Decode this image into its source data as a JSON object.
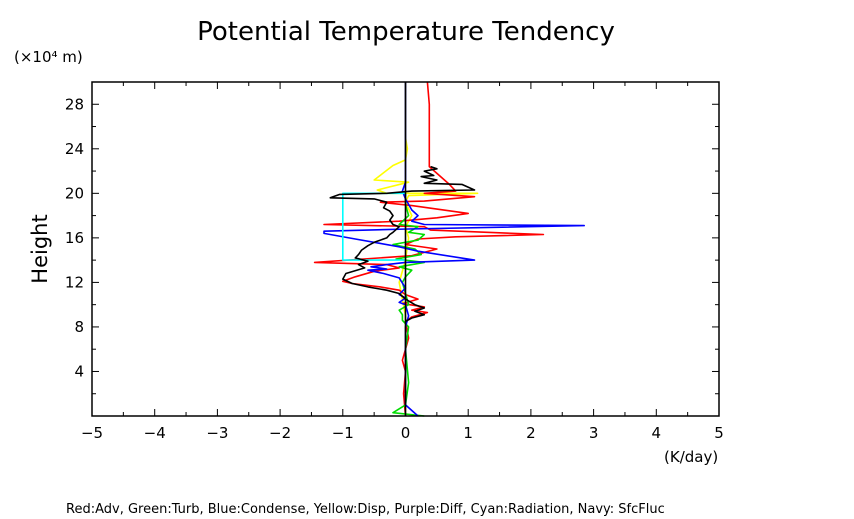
{
  "chart_data": {
    "type": "line",
    "title": "Potential Temperature Tendency",
    "xlabel": "(K/day)",
    "ylabel": "Height",
    "y_unit_label": "(×10⁴ m)",
    "xlim": [
      -5,
      5
    ],
    "ylim": [
      0,
      30
    ],
    "x_ticks": [
      "−5",
      "−4",
      "−3",
      "−2",
      "−1",
      "0",
      "1",
      "2",
      "3",
      "4",
      "5"
    ],
    "y_ticks": [
      "4",
      "8",
      "12",
      "16",
      "20",
      "24",
      "28"
    ],
    "grid": false,
    "legend_caption": "Red:Adv, Green:Turb, Blue:Condense, Yellow:Disp, Purple:Diff, Cyan:Radiation, Navy: SfcFluc",
    "series": [
      {
        "color": "#ffff00",
        "points": [
          [
            0,
            30
          ],
          [
            0,
            25
          ],
          [
            0.03,
            24
          ],
          [
            0,
            23
          ],
          [
            -0.2,
            22.5
          ],
          [
            -0.5,
            21.2
          ],
          [
            0.05,
            21
          ],
          [
            -0.45,
            20.3
          ],
          [
            -0.3,
            20
          ],
          [
            1.15,
            20
          ],
          [
            0.05,
            19.8
          ],
          [
            0,
            19.2
          ],
          [
            0.1,
            18
          ],
          [
            0,
            17
          ],
          [
            0.05,
            16
          ],
          [
            0,
            14
          ],
          [
            -0.1,
            12
          ],
          [
            0,
            9
          ],
          [
            0,
            0
          ]
        ]
      },
      {
        "color": "#ff0000",
        "points": [
          [
            0.35,
            30
          ],
          [
            0.38,
            28
          ],
          [
            0.38,
            26
          ],
          [
            0.38,
            24
          ],
          [
            0.38,
            22.4
          ],
          [
            0.7,
            20.8
          ],
          [
            0.8,
            20.2
          ],
          [
            0.3,
            20
          ],
          [
            1.1,
            19.7
          ],
          [
            0.3,
            19.3
          ],
          [
            -0.4,
            19.2
          ],
          [
            0.1,
            18.9
          ],
          [
            1.0,
            18.2
          ],
          [
            0.5,
            17.8
          ],
          [
            -0.1,
            17.5
          ],
          [
            -1.3,
            17.2
          ],
          [
            0.3,
            17.0
          ],
          [
            0.4,
            16.7
          ],
          [
            2.2,
            16.3
          ],
          [
            0.8,
            16.1
          ],
          [
            0.2,
            15.9
          ],
          [
            0.0,
            15.4
          ],
          [
            0.5,
            15
          ],
          [
            0.1,
            14.4
          ],
          [
            -1.45,
            13.8
          ],
          [
            -0.3,
            13.6
          ],
          [
            -0.1,
            13.3
          ],
          [
            -0.5,
            13.0
          ],
          [
            -0.8,
            12.5
          ],
          [
            -1.0,
            12.1
          ],
          [
            -0.85,
            11.9
          ],
          [
            -0.4,
            11.6
          ],
          [
            -0.1,
            11.3
          ],
          [
            0,
            10.9
          ],
          [
            0.2,
            10.5
          ],
          [
            -0.05,
            10.1
          ],
          [
            0.3,
            9.8
          ],
          [
            0.1,
            9.5
          ],
          [
            0.35,
            9.3
          ],
          [
            0.1,
            8.9
          ],
          [
            0.0,
            8.5
          ],
          [
            0.05,
            7
          ],
          [
            -0.05,
            5
          ],
          [
            0.0,
            4
          ],
          [
            -0.03,
            2
          ],
          [
            0,
            0
          ]
        ]
      },
      {
        "color": "#00dd00",
        "points": [
          [
            0,
            20
          ],
          [
            0,
            19
          ],
          [
            0.05,
            18
          ],
          [
            -0.1,
            17.2
          ],
          [
            0.2,
            17
          ],
          [
            0.05,
            16.5
          ],
          [
            0.3,
            16.3
          ],
          [
            0.2,
            15.8
          ],
          [
            -0.2,
            15.4
          ],
          [
            0.15,
            15
          ],
          [
            0.25,
            14.5
          ],
          [
            -0.15,
            14.1
          ],
          [
            0.3,
            13.8
          ],
          [
            -0.1,
            13.4
          ],
          [
            0.1,
            13.1
          ],
          [
            0,
            12.5
          ],
          [
            -0.05,
            12
          ],
          [
            0,
            11
          ],
          [
            0.05,
            10
          ],
          [
            -0.1,
            9.5
          ],
          [
            -0.05,
            9.1
          ],
          [
            -0.05,
            8.6
          ],
          [
            0.05,
            8
          ],
          [
            0,
            6
          ],
          [
            0.05,
            3
          ],
          [
            0,
            1
          ],
          [
            -0.2,
            0.3
          ],
          [
            0.3,
            0
          ]
        ]
      },
      {
        "color": "#0000ff",
        "points": [
          [
            0,
            30
          ],
          [
            0,
            21
          ],
          [
            -0.05,
            20.2
          ],
          [
            0,
            19.5
          ],
          [
            0.1,
            18.5
          ],
          [
            0.2,
            18
          ],
          [
            0.1,
            17.5
          ],
          [
            0.3,
            17.2
          ],
          [
            2.85,
            17.1
          ],
          [
            0.05,
            16.8
          ],
          [
            -1.3,
            16.6
          ],
          [
            -1.3,
            16.4
          ],
          [
            -0.8,
            15.9
          ],
          [
            -0.4,
            15.5
          ],
          [
            -0.1,
            15.2
          ],
          [
            0.2,
            14.8
          ],
          [
            1.1,
            14.0
          ],
          [
            0,
            13.8
          ],
          [
            -0.3,
            13.6
          ],
          [
            -0.55,
            13.4
          ],
          [
            -0.3,
            13.2
          ],
          [
            -0.6,
            13.1
          ],
          [
            -0.35,
            12.8
          ],
          [
            -0.1,
            12.4
          ],
          [
            0,
            11.5
          ],
          [
            -0.1,
            10.9
          ],
          [
            0,
            10.6
          ],
          [
            -0.1,
            10.2
          ],
          [
            0,
            10
          ],
          [
            0.05,
            9
          ],
          [
            0,
            8
          ],
          [
            0,
            4
          ],
          [
            0,
            1
          ],
          [
            0.2,
            0
          ]
        ]
      },
      {
        "color": "#00ffff",
        "points": [
          [
            0,
            20
          ],
          [
            -1.0,
            20
          ],
          [
            -1.0,
            14
          ],
          [
            0,
            14
          ]
        ]
      },
      {
        "color": "#000000",
        "points": [
          [
            0.4,
            22.4
          ],
          [
            0.5,
            22.2
          ],
          [
            0.3,
            22
          ],
          [
            0.45,
            21.6
          ],
          [
            0.25,
            21.5
          ],
          [
            0.5,
            21.2
          ],
          [
            0.3,
            20.9
          ],
          [
            0.9,
            20.8
          ],
          [
            1.1,
            20.3
          ],
          [
            0.1,
            20.2
          ],
          [
            -0.3,
            20.0
          ],
          [
            -1.05,
            19.9
          ],
          [
            -1.2,
            19.6
          ],
          [
            -0.5,
            19.5
          ],
          [
            -0.3,
            19.2
          ],
          [
            -0.35,
            18.7
          ],
          [
            -0.25,
            18.4
          ],
          [
            -0.2,
            18.0
          ],
          [
            -0.25,
            17.6
          ],
          [
            -0.2,
            17.2
          ],
          [
            -0.1,
            17.0
          ],
          [
            -0.2,
            16.5
          ],
          [
            -0.25,
            16.3
          ],
          [
            -0.3,
            16
          ],
          [
            -0.4,
            15.8
          ],
          [
            -0.5,
            15.6
          ],
          [
            -0.6,
            15.3
          ],
          [
            -0.7,
            14.9
          ],
          [
            -0.75,
            14.5
          ],
          [
            -0.8,
            14.2
          ],
          [
            -0.6,
            13.9
          ],
          [
            -0.75,
            13.6
          ],
          [
            -0.65,
            13.3
          ],
          [
            -0.95,
            12.8
          ],
          [
            -1.0,
            12.3
          ],
          [
            -0.85,
            11.9
          ],
          [
            -0.6,
            11.6
          ],
          [
            -0.3,
            11.3
          ],
          [
            -0.1,
            11.0
          ],
          [
            0,
            10.5
          ],
          [
            0.15,
            10
          ],
          [
            0.3,
            9.7
          ],
          [
            0.15,
            9.4
          ],
          [
            0.3,
            9.1
          ],
          [
            0.1,
            8.8
          ],
          [
            0,
            8.5
          ]
        ]
      },
      {
        "color": "#000000",
        "points": [
          [
            0,
            30
          ],
          [
            0,
            0
          ]
        ]
      }
    ]
  }
}
